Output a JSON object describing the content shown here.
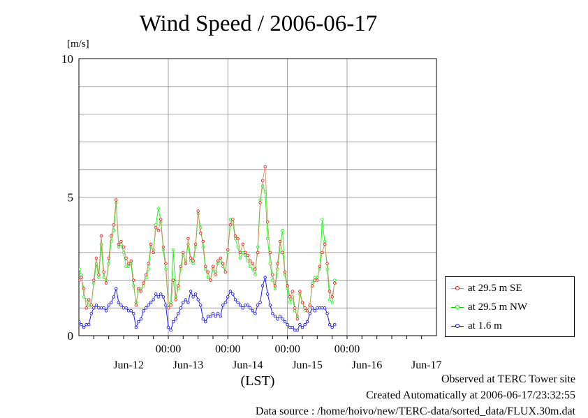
{
  "chart_data": {
    "type": "line",
    "title": "Wind Speed / 2006-06-17",
    "ylabel": "[m/s]",
    "xlabel": "(LST)",
    "ylim": [
      0,
      10
    ],
    "yticks": [
      "0",
      "5",
      "10"
    ],
    "xlim": [
      0,
      144
    ],
    "time_ticks": [
      {
        "x": 36,
        "label": "00:00"
      },
      {
        "x": 60,
        "label": "00:00"
      },
      {
        "x": 84,
        "label": "00:00"
      },
      {
        "x": 108,
        "label": "00:00"
      }
    ],
    "date_ticks": [
      {
        "x": 20,
        "label": "Jun-12"
      },
      {
        "x": 44,
        "label": "Jun-13"
      },
      {
        "x": 68,
        "label": "Jun-14"
      },
      {
        "x": 92,
        "label": "Jun-15"
      },
      {
        "x": 116,
        "label": "Jun-16"
      },
      {
        "x": 140,
        "label": "Jun-17"
      }
    ],
    "x_unit": "hours",
    "grid": true,
    "legend_position": "right",
    "series": [
      {
        "name": "at 29.5 m SE",
        "color": "#ff0000",
        "line_color": "#d09060",
        "points": [
          [
            0,
            2.0
          ],
          [
            1,
            2.1
          ],
          [
            2,
            1.7
          ],
          [
            3,
            1.0
          ],
          [
            4,
            1.3
          ],
          [
            5,
            1.1
          ],
          [
            6,
            2.0
          ],
          [
            7,
            2.8
          ],
          [
            8,
            2.2
          ],
          [
            9,
            3.6
          ],
          [
            10,
            2.3
          ],
          [
            11,
            1.9
          ],
          [
            12,
            2.8
          ],
          [
            13,
            3.6
          ],
          [
            14,
            4.0
          ],
          [
            15,
            4.9
          ],
          [
            16,
            3.3
          ],
          [
            17,
            3.4
          ],
          [
            18,
            3.2
          ],
          [
            19,
            2.8
          ],
          [
            20,
            2.6
          ],
          [
            21,
            2.7
          ],
          [
            22,
            2.0
          ],
          [
            23,
            1.1
          ],
          [
            24,
            1.7
          ],
          [
            25,
            1.6
          ],
          [
            26,
            1.9
          ],
          [
            27,
            2.2
          ],
          [
            28,
            2.6
          ],
          [
            29,
            3.3
          ],
          [
            30,
            3.0
          ],
          [
            31,
            3.9
          ],
          [
            32,
            3.8
          ],
          [
            33,
            4.2
          ],
          [
            34,
            3.2
          ],
          [
            35,
            2.6
          ],
          [
            36,
            1.0
          ],
          [
            37,
            1.1
          ],
          [
            38,
            2.0
          ],
          [
            39,
            1.3
          ],
          [
            40,
            1.8
          ],
          [
            41,
            2.5
          ],
          [
            42,
            3.0
          ],
          [
            43,
            2.6
          ],
          [
            44,
            3.5
          ],
          [
            45,
            2.8
          ],
          [
            46,
            2.7
          ],
          [
            47,
            3.3
          ],
          [
            48,
            4.5
          ],
          [
            49,
            3.7
          ],
          [
            50,
            3.4
          ],
          [
            51,
            2.5
          ],
          [
            52,
            2.3
          ],
          [
            53,
            2.0
          ],
          [
            54,
            2.5
          ],
          [
            55,
            2.2
          ],
          [
            56,
            2.7
          ],
          [
            57,
            2.8
          ],
          [
            58,
            2.6
          ],
          [
            59,
            2.3
          ],
          [
            60,
            3.1
          ],
          [
            61,
            4.0
          ],
          [
            62,
            4.2
          ],
          [
            63,
            3.6
          ],
          [
            64,
            3.5
          ],
          [
            65,
            3.0
          ],
          [
            66,
            3.3
          ],
          [
            67,
            3.0
          ],
          [
            68,
            2.9
          ],
          [
            69,
            2.7
          ],
          [
            70,
            2.6
          ],
          [
            71,
            2.4
          ],
          [
            72,
            3.0
          ],
          [
            73,
            4.8
          ],
          [
            74,
            5.6
          ],
          [
            75,
            6.1
          ],
          [
            76,
            4.1
          ],
          [
            77,
            3.0
          ],
          [
            78,
            2.2
          ],
          [
            79,
            1.8
          ],
          [
            80,
            2.6
          ],
          [
            81,
            3.4
          ],
          [
            82,
            3.0
          ],
          [
            83,
            2.3
          ],
          [
            84,
            1.8
          ],
          [
            85,
            1.4
          ],
          [
            86,
            1.6
          ],
          [
            87,
            1.0
          ],
          [
            88,
            0.6
          ],
          [
            89,
            1.6
          ],
          [
            90,
            1.2
          ],
          [
            91,
            1.0
          ],
          [
            92,
            0.9
          ],
          [
            93,
            1.1
          ],
          [
            94,
            1.8
          ],
          [
            95,
            2.0
          ],
          [
            96,
            2.0
          ],
          [
            97,
            2.5
          ],
          [
            98,
            3.0
          ],
          [
            99,
            3.3
          ],
          [
            100,
            2.6
          ],
          [
            101,
            1.6
          ],
          [
            102,
            1.4
          ],
          [
            103,
            1.9
          ]
        ]
      },
      {
        "name": "at 29.5 m NW",
        "color": "#00ff00",
        "points": [
          [
            0,
            2.4
          ],
          [
            1,
            2.2
          ],
          [
            2,
            1.4
          ],
          [
            3,
            1.3
          ],
          [
            4,
            1.1
          ],
          [
            5,
            1.1
          ],
          [
            6,
            1.9
          ],
          [
            7,
            2.6
          ],
          [
            8,
            2.1
          ],
          [
            9,
            3.3
          ],
          [
            10,
            2.1
          ],
          [
            11,
            2.0
          ],
          [
            12,
            2.6
          ],
          [
            13,
            3.4
          ],
          [
            14,
            3.8
          ],
          [
            15,
            4.8
          ],
          [
            16,
            3.2
          ],
          [
            17,
            3.3
          ],
          [
            18,
            3.0
          ],
          [
            19,
            2.5
          ],
          [
            20,
            2.5
          ],
          [
            21,
            2.6
          ],
          [
            22,
            1.8
          ],
          [
            23,
            1.2
          ],
          [
            24,
            1.6
          ],
          [
            25,
            1.7
          ],
          [
            26,
            1.8
          ],
          [
            27,
            2.1
          ],
          [
            28,
            2.4
          ],
          [
            29,
            3.2
          ],
          [
            30,
            3.1
          ],
          [
            31,
            4.0
          ],
          [
            32,
            4.6
          ],
          [
            33,
            4.1
          ],
          [
            34,
            3.1
          ],
          [
            35,
            2.4
          ],
          [
            36,
            1.1
          ],
          [
            37,
            1.2
          ],
          [
            38,
            3.1
          ],
          [
            39,
            1.4
          ],
          [
            40,
            1.7
          ],
          [
            41,
            2.4
          ],
          [
            42,
            2.9
          ],
          [
            43,
            2.7
          ],
          [
            44,
            3.3
          ],
          [
            45,
            2.7
          ],
          [
            46,
            2.6
          ],
          [
            47,
            3.2
          ],
          [
            48,
            4.4
          ],
          [
            49,
            3.9
          ],
          [
            50,
            3.2
          ],
          [
            51,
            2.4
          ],
          [
            52,
            2.1
          ],
          [
            53,
            2.0
          ],
          [
            54,
            2.4
          ],
          [
            55,
            2.3
          ],
          [
            56,
            2.6
          ],
          [
            57,
            2.7
          ],
          [
            58,
            2.5
          ],
          [
            59,
            2.3
          ],
          [
            60,
            3.0
          ],
          [
            61,
            4.2
          ],
          [
            62,
            4.1
          ],
          [
            63,
            3.5
          ],
          [
            64,
            3.2
          ],
          [
            65,
            2.8
          ],
          [
            66,
            3.0
          ],
          [
            67,
            2.9
          ],
          [
            68,
            2.7
          ],
          [
            69,
            2.5
          ],
          [
            70,
            2.4
          ],
          [
            71,
            2.2
          ],
          [
            72,
            3.2
          ],
          [
            73,
            4.9
          ],
          [
            74,
            5.4
          ],
          [
            75,
            5.2
          ],
          [
            76,
            3.5
          ],
          [
            77,
            2.6
          ],
          [
            78,
            2.0
          ],
          [
            79,
            1.7
          ],
          [
            80,
            2.4
          ],
          [
            81,
            3.2
          ],
          [
            82,
            3.8
          ],
          [
            83,
            2.2
          ],
          [
            84,
            1.7
          ],
          [
            85,
            1.2
          ],
          [
            86,
            1.4
          ],
          [
            87,
            0.9
          ],
          [
            88,
            0.7
          ],
          [
            89,
            1.5
          ],
          [
            90,
            1.2
          ],
          [
            91,
            0.9
          ],
          [
            92,
            0.9
          ],
          [
            93,
            1.1
          ],
          [
            94,
            1.9
          ],
          [
            95,
            2.1
          ],
          [
            96,
            2.1
          ],
          [
            97,
            2.4
          ],
          [
            98,
            4.2
          ],
          [
            99,
            3.4
          ],
          [
            100,
            2.4
          ],
          [
            101,
            1.3
          ],
          [
            102,
            1.2
          ],
          [
            103,
            2.0
          ]
        ]
      },
      {
        "name": "at 1.6 m",
        "color": "#0000ff",
        "points": [
          [
            0,
            0.5
          ],
          [
            1,
            0.4
          ],
          [
            2,
            0.3
          ],
          [
            3,
            0.4
          ],
          [
            4,
            0.4
          ],
          [
            5,
            0.8
          ],
          [
            6,
            1.0
          ],
          [
            7,
            1.1
          ],
          [
            8,
            1.0
          ],
          [
            9,
            1.0
          ],
          [
            10,
            1.0
          ],
          [
            11,
            0.9
          ],
          [
            12,
            1.1
          ],
          [
            13,
            1.2
          ],
          [
            14,
            1.4
          ],
          [
            15,
            1.7
          ],
          [
            16,
            1.2
          ],
          [
            17,
            1.1
          ],
          [
            18,
            1.0
          ],
          [
            19,
            1.0
          ],
          [
            20,
            0.9
          ],
          [
            21,
            0.9
          ],
          [
            22,
            0.8
          ],
          [
            23,
            0.3
          ],
          [
            24,
            0.5
          ],
          [
            25,
            0.6
          ],
          [
            26,
            0.9
          ],
          [
            27,
            1.0
          ],
          [
            28,
            1.1
          ],
          [
            29,
            1.2
          ],
          [
            30,
            1.3
          ],
          [
            31,
            1.5
          ],
          [
            32,
            1.4
          ],
          [
            33,
            1.5
          ],
          [
            34,
            1.4
          ],
          [
            35,
            1.1
          ],
          [
            36,
            0.3
          ],
          [
            37,
            0.2
          ],
          [
            38,
            0.5
          ],
          [
            39,
            0.6
          ],
          [
            40,
            0.8
          ],
          [
            41,
            1.0
          ],
          [
            42,
            1.2
          ],
          [
            43,
            1.3
          ],
          [
            44,
            1.2
          ],
          [
            45,
            1.6
          ],
          [
            46,
            1.4
          ],
          [
            47,
            1.5
          ],
          [
            48,
            1.3
          ],
          [
            49,
            1.1
          ],
          [
            50,
            0.6
          ],
          [
            51,
            0.5
          ],
          [
            52,
            0.7
          ],
          [
            53,
            0.7
          ],
          [
            54,
            0.8
          ],
          [
            55,
            0.7
          ],
          [
            56,
            0.8
          ],
          [
            57,
            0.7
          ],
          [
            58,
            1.1
          ],
          [
            59,
            1.2
          ],
          [
            60,
            1.4
          ],
          [
            61,
            1.6
          ],
          [
            62,
            1.5
          ],
          [
            63,
            1.3
          ],
          [
            64,
            1.2
          ],
          [
            65,
            1.1
          ],
          [
            66,
            1.0
          ],
          [
            67,
            1.1
          ],
          [
            68,
            1.1
          ],
          [
            69,
            1.0
          ],
          [
            70,
            0.9
          ],
          [
            71,
            0.8
          ],
          [
            72,
            1.1
          ],
          [
            73,
            1.2
          ],
          [
            74,
            1.8
          ],
          [
            75,
            2.1
          ],
          [
            76,
            1.5
          ],
          [
            77,
            1.1
          ],
          [
            78,
            0.8
          ],
          [
            79,
            0.7
          ],
          [
            80,
            0.6
          ],
          [
            81,
            0.7
          ],
          [
            82,
            0.6
          ],
          [
            83,
            0.5
          ],
          [
            84,
            0.4
          ],
          [
            85,
            0.3
          ],
          [
            86,
            0.3
          ],
          [
            87,
            0.2
          ],
          [
            88,
            0.2
          ],
          [
            89,
            0.4
          ],
          [
            90,
            0.3
          ],
          [
            91,
            0.4
          ],
          [
            92,
            0.5
          ],
          [
            93,
            0.8
          ],
          [
            94,
            1.0
          ],
          [
            95,
            0.9
          ],
          [
            96,
            1.0
          ],
          [
            97,
            1.0
          ],
          [
            98,
            1.0
          ],
          [
            99,
            1.0
          ],
          [
            100,
            0.8
          ],
          [
            101,
            0.4
          ],
          [
            102,
            0.3
          ],
          [
            103,
            0.4
          ]
        ]
      }
    ]
  },
  "footer": {
    "line1": "Observed at TERC Tower site",
    "line2": "Created Automatically at 2006-06-17/23:32:55",
    "line3": "Data source : /home/hoivo/new/TERC-data/sorted_data/FLUX.30m.dat"
  }
}
